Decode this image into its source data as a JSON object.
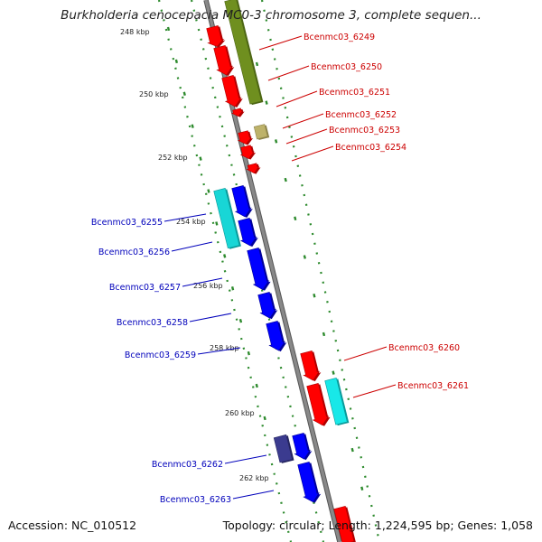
{
  "title": "Burkholderia cenocepacia MC0-3 chromosome 3, complete sequen...",
  "accession": "Accession: NC_010512",
  "summary": "Topology: circular; Length: 1,224,595 bp; Genes: 1,058",
  "colors": {
    "forward_gene": "#ff0000",
    "reverse_gene": "#0000ff",
    "forward_label": "#cc0000",
    "reverse_label": "#0000bb",
    "ruler_tick": "#2e8b2e",
    "backbone": "#888888"
  },
  "ruler_labels": [
    "248 kbp",
    "250 kbp",
    "252 kbp",
    "254 kbp",
    "256 kbp",
    "258 kbp",
    "260 kbp",
    "262 kbp"
  ],
  "genes": [
    {
      "name": "Bcenmc03_6249",
      "strand": "forward"
    },
    {
      "name": "Bcenmc03_6250",
      "strand": "forward"
    },
    {
      "name": "Bcenmc03_6251",
      "strand": "forward"
    },
    {
      "name": "Bcenmc03_6252",
      "strand": "forward"
    },
    {
      "name": "Bcenmc03_6253",
      "strand": "forward"
    },
    {
      "name": "Bcenmc03_6254",
      "strand": "forward"
    },
    {
      "name": "Bcenmc03_6255",
      "strand": "reverse"
    },
    {
      "name": "Bcenmc03_6256",
      "strand": "reverse"
    },
    {
      "name": "Bcenmc03_6257",
      "strand": "reverse"
    },
    {
      "name": "Bcenmc03_6258",
      "strand": "reverse"
    },
    {
      "name": "Bcenmc03_6259",
      "strand": "reverse"
    },
    {
      "name": "Bcenmc03_6260",
      "strand": "forward"
    },
    {
      "name": "Bcenmc03_6261",
      "strand": "forward"
    },
    {
      "name": "Bcenmc03_6262",
      "strand": "reverse"
    },
    {
      "name": "Bcenmc03_6263",
      "strand": "reverse"
    }
  ]
}
